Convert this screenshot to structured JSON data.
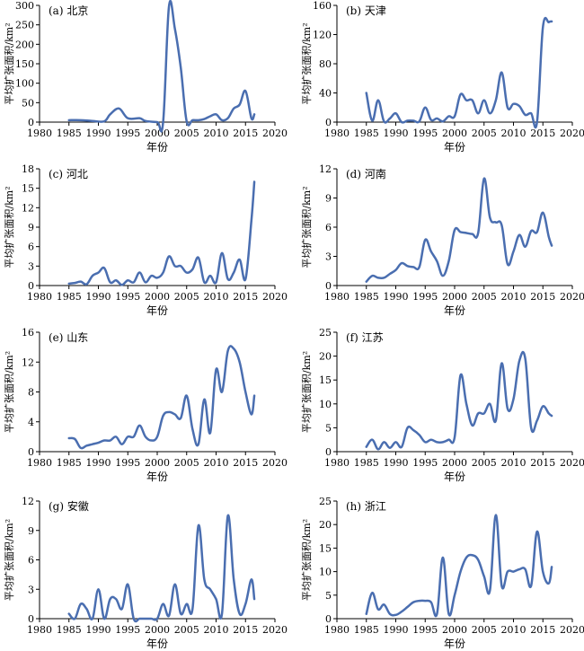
{
  "chart_data": [
    {
      "type": "line",
      "title": "(a) 北京",
      "xlabel": "年份",
      "ylabel": "平均扩张面积/km²",
      "xlim": [
        1980,
        2020
      ],
      "ylim": [
        0,
        300
      ],
      "xticks": [
        1980,
        1985,
        1990,
        1995,
        2000,
        2005,
        2010,
        2015,
        2020
      ],
      "yticks": [
        0,
        50,
        100,
        150,
        200,
        250,
        300
      ],
      "x": [
        1985,
        1987,
        1989,
        1991,
        1992,
        1993.5,
        1995,
        1997,
        1998,
        2000,
        2001,
        2002,
        2003,
        2004,
        2005,
        2006,
        2007,
        2008,
        2009,
        2010,
        2011,
        2012,
        2013,
        2014,
        2015,
        2016,
        2016.5
      ],
      "y": [
        5,
        5,
        3,
        2,
        20,
        35,
        10,
        10,
        3,
        0,
        0,
        298,
        240,
        140,
        2,
        5,
        5,
        8,
        15,
        20,
        5,
        10,
        35,
        45,
        80,
        10,
        20
      ]
    },
    {
      "type": "line",
      "title": "(b) 天津",
      "xlabel": "年份",
      "ylabel": "平均扩张面积/km²",
      "xlim": [
        1980,
        2020
      ],
      "ylim": [
        0,
        160
      ],
      "xticks": [
        1980,
        1985,
        1990,
        1995,
        2000,
        2005,
        2010,
        2015,
        2020
      ],
      "yticks": [
        0,
        40,
        80,
        120,
        160
      ],
      "x": [
        1985,
        1986,
        1987,
        1988,
        1989,
        1990,
        1991,
        1992,
        1993,
        1994,
        1995,
        1996,
        1997,
        1998,
        1999,
        2000,
        2001,
        2002,
        2003,
        2004,
        2005,
        2006,
        2007,
        2008,
        2009,
        2010,
        2011,
        2012,
        2013,
        2014,
        2015,
        2016,
        2016.5
      ],
      "y": [
        40,
        2,
        30,
        1,
        5,
        12,
        0,
        2,
        2,
        1,
        20,
        3,
        5,
        1,
        8,
        8,
        38,
        30,
        30,
        12,
        30,
        12,
        30,
        68,
        20,
        25,
        22,
        10,
        12,
        0,
        130,
        137,
        138
      ]
    },
    {
      "type": "line",
      "title": "(c) 河北",
      "xlabel": "年份",
      "ylabel": "平均扩张面积/km²",
      "xlim": [
        1980,
        2020
      ],
      "ylim": [
        0,
        18
      ],
      "xticks": [
        1980,
        1985,
        1990,
        1995,
        2000,
        2005,
        2010,
        2015,
        2020
      ],
      "yticks": [
        0,
        3,
        6,
        9,
        12,
        15,
        18
      ],
      "x": [
        1985,
        1986,
        1987,
        1988,
        1989,
        1990,
        1991,
        1992,
        1993,
        1994,
        1995,
        1996,
        1997,
        1998,
        1999,
        2000,
        2001,
        2002,
        2003,
        2004,
        2005,
        2006,
        2007,
        2008,
        2009,
        2010,
        2011,
        2012,
        2013,
        2014,
        2015,
        2016,
        2016.5
      ],
      "y": [
        0.3,
        0.4,
        0.6,
        0.2,
        1.5,
        2,
        2.7,
        0.5,
        0.8,
        0.1,
        0.8,
        0.5,
        2,
        0.5,
        1.5,
        1.2,
        2,
        4.5,
        3,
        3,
        2,
        2.5,
        4.3,
        0.5,
        1.5,
        0.5,
        5,
        1,
        2,
        4,
        1,
        10,
        16
      ]
    },
    {
      "type": "line",
      "title": "(d) 河南",
      "xlabel": "年份",
      "ylabel": "平均扩张面积/km²",
      "xlim": [
        1980,
        2020
      ],
      "ylim": [
        0,
        12
      ],
      "xticks": [
        1980,
        1985,
        1990,
        1995,
        2000,
        2005,
        2010,
        2015,
        2020
      ],
      "yticks": [
        0,
        3,
        6,
        9,
        12
      ],
      "x": [
        1985,
        1986,
        1987,
        1988,
        1989,
        1990,
        1991,
        1992,
        1993,
        1994,
        1995,
        1996,
        1997,
        1998,
        1999,
        2000,
        2001,
        2002,
        2003,
        2004,
        2005,
        2006,
        2007,
        2008,
        2009,
        2010,
        2011,
        2012,
        2013,
        2014,
        2015,
        2016,
        2016.5
      ],
      "y": [
        0.4,
        1,
        0.8,
        0.8,
        1.2,
        1.6,
        2.3,
        2,
        1.9,
        1.9,
        4.7,
        3.5,
        2.5,
        1,
        2.5,
        5.7,
        5.5,
        5.4,
        5.3,
        5.4,
        11,
        7,
        6.5,
        6.2,
        2.2,
        3.5,
        5.2,
        4,
        5.6,
        5.5,
        7.5,
        5,
        4.1
      ]
    },
    {
      "type": "line",
      "title": "(e) 山东",
      "xlabel": "年份",
      "ylabel": "平均扩张面积/km²",
      "xlim": [
        1980,
        2020
      ],
      "ylim": [
        0,
        16
      ],
      "xticks": [
        1980,
        1985,
        1990,
        1995,
        2000,
        2005,
        2010,
        2015,
        2020
      ],
      "yticks": [
        0,
        4,
        8,
        12,
        16
      ],
      "x": [
        1985,
        1986,
        1987,
        1988,
        1989,
        1990,
        1991,
        1992,
        1993,
        1994,
        1995,
        1996,
        1997,
        1998,
        1999,
        2000,
        2001,
        2002,
        2003,
        2004,
        2005,
        2006,
        2007,
        2008,
        2009,
        2010,
        2011,
        2012,
        2013,
        2014,
        2015,
        2016,
        2016.5
      ],
      "y": [
        1.8,
        1.7,
        0.5,
        0.8,
        1,
        1.2,
        1.5,
        1.5,
        2,
        1,
        2,
        2,
        3.5,
        2,
        1.5,
        2,
        4.8,
        5.3,
        5,
        4.5,
        7.5,
        3,
        1,
        7,
        2.5,
        11,
        8,
        13.5,
        13.8,
        12,
        8,
        5,
        7.5
      ]
    },
    {
      "type": "line",
      "title": "(f) 江苏",
      "xlabel": "年份",
      "ylabel": "平均扩张面积/km²",
      "xlim": [
        1980,
        2020
      ],
      "ylim": [
        0,
        25
      ],
      "xticks": [
        1980,
        1985,
        1990,
        1995,
        2000,
        2005,
        2010,
        2015,
        2020
      ],
      "yticks": [
        0,
        5,
        10,
        15,
        20,
        25
      ],
      "x": [
        1985,
        1986,
        1987,
        1988,
        1989,
        1990,
        1991,
        1992,
        1993,
        1994,
        1995,
        1996,
        1997,
        1998,
        1999,
        2000,
        2001,
        2002,
        2003,
        2004,
        2005,
        2006,
        2007,
        2008,
        2009,
        2010,
        2011,
        2012,
        2013,
        2014,
        2015,
        2016,
        2016.5
      ],
      "y": [
        1,
        2.5,
        0.5,
        2,
        0.8,
        2,
        1,
        5,
        4.5,
        3.5,
        2,
        2.5,
        2,
        2,
        2.5,
        3,
        16,
        10,
        5.5,
        8,
        8,
        10,
        6.5,
        18.5,
        9,
        11,
        19,
        19.5,
        5,
        6.5,
        9.5,
        8,
        7.5
      ]
    },
    {
      "type": "line",
      "title": "(g) 安徽",
      "xlabel": "年份",
      "ylabel": "平均扩张面积/km²",
      "xlim": [
        1980,
        2020
      ],
      "ylim": [
        0,
        12
      ],
      "xticks": [
        1980,
        1985,
        1990,
        1995,
        2000,
        2005,
        2010,
        2015,
        2020
      ],
      "yticks": [
        0,
        3,
        6,
        9,
        12
      ],
      "x": [
        1985,
        1986,
        1987,
        1988,
        1989,
        1990,
        1991,
        1992,
        1993,
        1994,
        1995,
        1996,
        1997,
        1998,
        1999,
        2000,
        2001,
        2002,
        2003,
        2004,
        2005,
        2006,
        2007,
        2008,
        2009,
        2010,
        2011,
        2012,
        2013,
        2014,
        2015,
        2016,
        2016.5
      ],
      "y": [
        0.5,
        0,
        1.5,
        1,
        0,
        3,
        0,
        2,
        2,
        1,
        3.5,
        0,
        0,
        0,
        0,
        0,
        1.5,
        0.3,
        3.5,
        0.5,
        1.5,
        1,
        9.5,
        4,
        3,
        2,
        0.5,
        10.5,
        4,
        0.5,
        1.5,
        4,
        2
      ]
    },
    {
      "type": "line",
      "title": "(h) 浙江",
      "xlabel": "年份",
      "ylabel": "平均扩张面积/km²",
      "xlim": [
        1980,
        2020
      ],
      "ylim": [
        0,
        25
      ],
      "xticks": [
        1980,
        1985,
        1990,
        1995,
        2000,
        2005,
        2010,
        2015,
        2020
      ],
      "yticks": [
        0,
        5,
        10,
        15,
        20,
        25
      ],
      "x": [
        1985,
        1986,
        1987,
        1988,
        1989,
        1990,
        1991,
        1992,
        1993,
        1994,
        1995,
        1996,
        1997,
        1998,
        1999,
        2000,
        2001,
        2002,
        2003,
        2004,
        2005,
        2006,
        2007,
        2008,
        2009,
        2010,
        2011,
        2012,
        2013,
        2014,
        2015,
        2016,
        2016.5
      ],
      "y": [
        1,
        5.5,
        2,
        3,
        1,
        0.8,
        1.5,
        2.5,
        3.5,
        3.8,
        3.8,
        3.5,
        1,
        13,
        1,
        5,
        10,
        13,
        13.5,
        12.5,
        9,
        6,
        22,
        7,
        10,
        10,
        10.5,
        10.5,
        7,
        18.5,
        10,
        7.5,
        11
      ]
    }
  ]
}
